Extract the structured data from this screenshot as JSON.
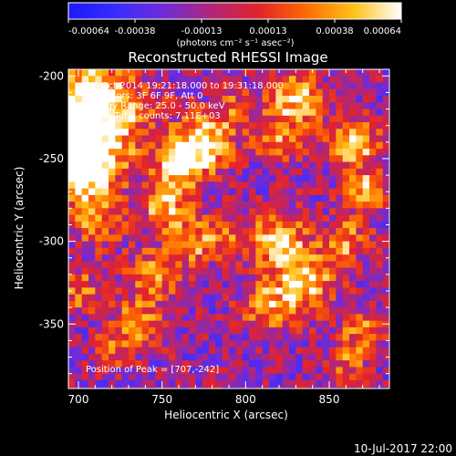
{
  "chart_data": {
    "type": "heatmap",
    "title": "Reconstructed RHESSI Image",
    "xlabel": "Heliocentric X (arcsec)",
    "ylabel": "Heliocentric Y (arcsec)",
    "xlim": [
      694,
      886
    ],
    "ylim": [
      -389,
      -196
    ],
    "x_ticks": [
      700,
      750,
      800,
      850
    ],
    "y_ticks": [
      -200,
      -250,
      -300,
      -350
    ],
    "colorbar": {
      "range": [
        -0.00064,
        0.00064
      ],
      "ticks": [
        "-0.00064",
        "-0.00038",
        "-0.00013",
        "0.00013",
        "0.00038",
        "0.00064"
      ],
      "unit_label": "(photons cm⁻² s⁻¹ asec⁻²)",
      "colors": [
        "#1a1aff",
        "#3a2cff",
        "#6f2bd9",
        "#b0267a",
        "#e3232b",
        "#ff6a00",
        "#ffc21a",
        "#ffffff"
      ]
    },
    "annotations": [
      "27-Oct-2014 19:21:18.000 to 19:31:18.000",
      "Detectors: 3F 6F 9F, Att 0",
      "Energy Range: 25.0 - 50.0 keV",
      "Clean   Total counts: 7.11E+03"
    ],
    "peak_label": "Position of Peak = [707,-242]",
    "peak": [
      707,
      -242
    ],
    "grid": false,
    "legend": "none"
  },
  "footer_date": "10-Jul-2017 22:00"
}
